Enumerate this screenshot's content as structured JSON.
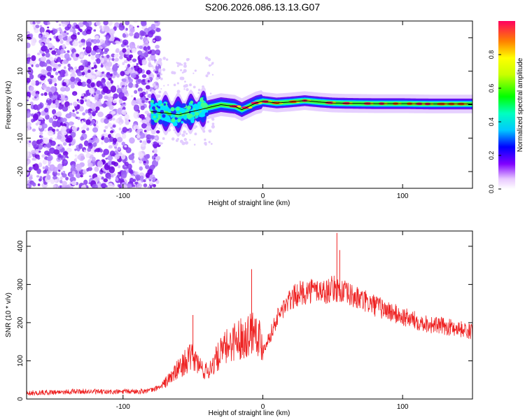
{
  "figure": {
    "title": "S206.2026.086.13.13.G07"
  },
  "colors": {
    "snr_line": "#ee2222",
    "ridge_line": "#000000",
    "noise_purple": "#7a22ee",
    "frame": "#000000"
  },
  "chart_data": [
    {
      "type": "heatmap",
      "title": "",
      "xlabel": "Height of straight line (km)",
      "ylabel": "Frequency (Hz)",
      "xlim": [
        -169,
        150
      ],
      "ylim": [
        -25,
        25
      ],
      "xticks": [
        -100,
        0,
        100
      ],
      "xtick_labels": [
        "-100",
        "0",
        "100"
      ],
      "yticks": [
        -20,
        -10,
        0,
        10,
        20
      ],
      "ytick_labels": [
        "-20",
        "-10",
        "0",
        "10",
        "20"
      ],
      "colorbar": {
        "label": "Normalized spectral amplitude",
        "range": [
          0,
          1
        ],
        "ticks": [
          0.0,
          0.2,
          0.4,
          0.6,
          0.8
        ],
        "tick_labels": [
          "0.0",
          "0.2",
          "0.4",
          "0.6",
          "0.8"
        ],
        "colormap": "rainbow"
      },
      "ridge": {
        "x": [
          -80,
          -70,
          -60,
          -50,
          -40,
          -30,
          -20,
          -15,
          -10,
          -5,
          0,
          10,
          20,
          30,
          40,
          50,
          60,
          80,
          100,
          120,
          150
        ],
        "y": [
          -2,
          -2.5,
          -3,
          -2,
          -1,
          0,
          -0.5,
          -1.5,
          -0.5,
          0.5,
          1,
          0.5,
          0.8,
          1.2,
          0.8,
          0.5,
          0.4,
          0.3,
          0.3,
          0.2,
          0.2
        ]
      },
      "noise_region_x": [
        -169,
        -80
      ]
    },
    {
      "type": "line",
      "title": "",
      "xlabel": "Height of straight line (km)",
      "ylabel": "SNR (10 * v/v)",
      "xlim": [
        -169,
        150
      ],
      "ylim": [
        0,
        440
      ],
      "xticks": [
        -100,
        0,
        100
      ],
      "xtick_labels": [
        "-100",
        "0",
        "100"
      ],
      "yticks": [
        0,
        100,
        200,
        300,
        400
      ],
      "ytick_labels": [
        "0",
        "100",
        "200",
        "300",
        "400"
      ],
      "series": [
        {
          "name": "SNR",
          "x": [
            -169,
            -150,
            -130,
            -110,
            -90,
            -80,
            -72,
            -65,
            -60,
            -55,
            -50,
            -45,
            -40,
            -35,
            -30,
            -25,
            -20,
            -15,
            -10,
            -5,
            0,
            5,
            10,
            15,
            20,
            25,
            30,
            35,
            40,
            45,
            50,
            55,
            60,
            70,
            80,
            90,
            100,
            110,
            120,
            130,
            140,
            150
          ],
          "values": [
            15,
            18,
            20,
            18,
            20,
            22,
            35,
            60,
            80,
            100,
            110,
            85,
            70,
            95,
            120,
            140,
            155,
            160,
            170,
            190,
            130,
            165,
            210,
            240,
            260,
            275,
            280,
            285,
            285,
            280,
            290,
            285,
            275,
            260,
            245,
            230,
            215,
            205,
            195,
            190,
            185,
            175
          ],
          "spikes": [
            {
              "x": -50,
              "value": 220
            },
            {
              "x": -8,
              "value": 340
            },
            {
              "x": 53,
              "value": 435
            },
            {
              "x": 55,
              "value": 390
            }
          ]
        }
      ]
    }
  ]
}
